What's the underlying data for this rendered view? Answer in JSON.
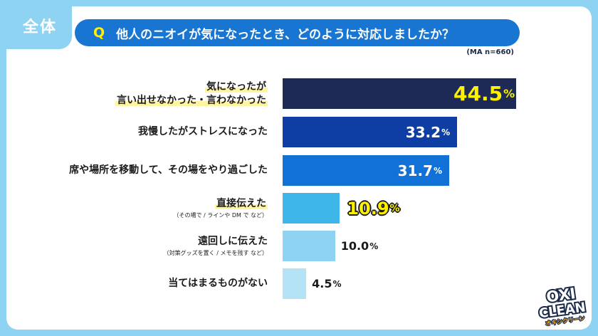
{
  "header": {
    "badge": "全体",
    "question_mark": "Q",
    "question": "他人のニオイが気になったとき、どのように対応しましたか？",
    "sample_note": "(MA n=660)"
  },
  "chart_data": {
    "type": "bar",
    "orientation": "horizontal",
    "categories": [
      "気になったが 言い出せなかった・言わなかった",
      "我慢したがストレスになった",
      "席や場所を移動して、その場をやり過ごした",
      "直接伝えた (その場で / ラインや DM で など)",
      "遠回しに伝えた (対策グッズを置く / メモを残す など)",
      "当てはまるものがない"
    ],
    "values": [
      44.5,
      33.2,
      31.7,
      10.9,
      10.0,
      4.5
    ],
    "unit": "%",
    "xlim": [
      0,
      46
    ],
    "grid": false,
    "bar_colors": [
      "#1c2a55",
      "#0e3ea3",
      "#1271d6",
      "#3fb6ea",
      "#8fd3f2",
      "#b5e3f6"
    ],
    "labels": [
      {
        "lines": [
          "気になったが",
          "言い出せなかった・言わなかった"
        ],
        "sub": "",
        "highlight": true
      },
      {
        "lines": [
          "我慢したがストレスになった"
        ],
        "sub": "",
        "highlight": false
      },
      {
        "lines": [
          "席や場所を移動して、その場をやり過ごした"
        ],
        "sub": "",
        "highlight": false
      },
      {
        "lines": [
          "直接伝えた"
        ],
        "sub": "（その場で / ラインや DM で など）",
        "highlight": true
      },
      {
        "lines": [
          "遠回しに伝えた"
        ],
        "sub": "（対策グッズを置く / メモを残す など）",
        "highlight": false
      },
      {
        "lines": [
          "当てはまるものがない"
        ],
        "sub": "",
        "highlight": false
      }
    ],
    "value_labels": [
      "44.5",
      "33.2",
      "31.7",
      "10.9",
      "10.0",
      "4.5"
    ],
    "value_styles": [
      "inside-yellow",
      "inside-white",
      "inside-white",
      "outside-yellow",
      "outside-dark",
      "outside-dark"
    ]
  },
  "logo": {
    "line1": "OXI",
    "line2": "CLEAN",
    "kana": "オキシクリーン"
  },
  "colors": {
    "background": "#8fd3f2",
    "question_bg": "#1876d2",
    "accent_yellow": "#fff000"
  }
}
